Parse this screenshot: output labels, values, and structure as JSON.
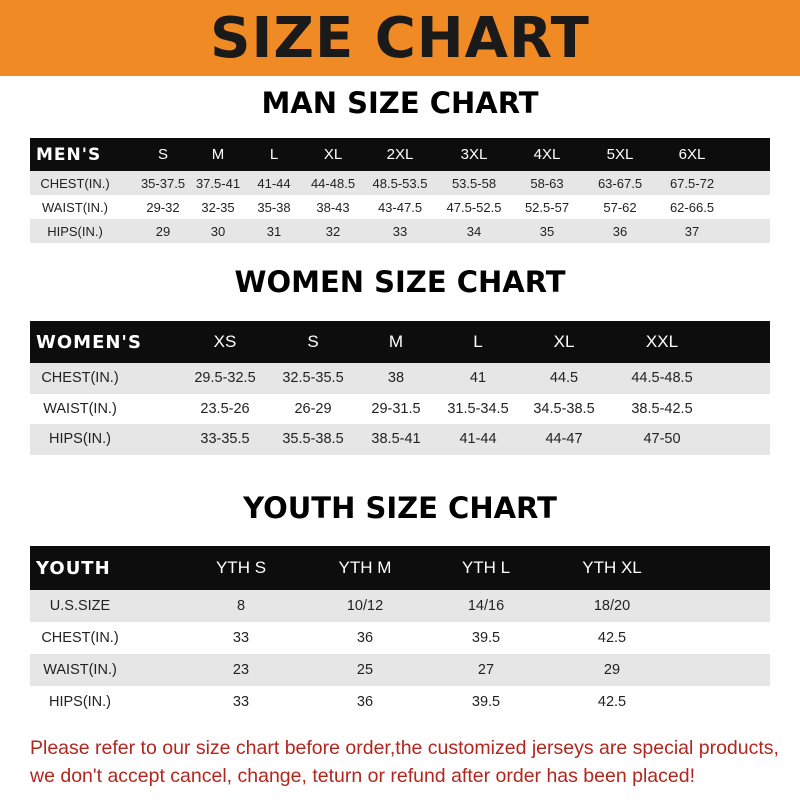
{
  "title": "SIZE CHART",
  "men": {
    "heading": "MAN SIZE CHART",
    "header": [
      "MEN'S",
      "S",
      "M",
      "L",
      "XL",
      "2XL",
      "3XL",
      "4XL",
      "5XL",
      "6XL"
    ],
    "rows": [
      [
        "CHEST(IN.)",
        "35-37.5",
        "37.5-41",
        "41-44",
        "44-48.5",
        "48.5-53.5",
        "53.5-58",
        "58-63",
        "63-67.5",
        "67.5-72"
      ],
      [
        "WAIST(IN.)",
        "29-32",
        "32-35",
        "35-38",
        "38-43",
        "43-47.5",
        "47.5-52.5",
        "52.5-57",
        "57-62",
        "62-66.5"
      ],
      [
        "HIPS(IN.)",
        "29",
        "30",
        "31",
        "32",
        "33",
        "34",
        "35",
        "36",
        "37"
      ]
    ]
  },
  "women": {
    "heading": "WOMEN SIZE CHART",
    "header": [
      "WOMEN'S",
      "XS",
      "S",
      "M",
      "L",
      "XL",
      "XXL"
    ],
    "rows": [
      [
        "CHEST(IN.)",
        "29.5-32.5",
        "32.5-35.5",
        "38",
        "41",
        "44.5",
        "44.5-48.5"
      ],
      [
        "WAIST(IN.)",
        "23.5-26",
        "26-29",
        "29-31.5",
        "31.5-34.5",
        "34.5-38.5",
        "38.5-42.5"
      ],
      [
        "HIPS(IN.)",
        "33-35.5",
        "35.5-38.5",
        "38.5-41",
        "41-44",
        "44-47",
        "47-50"
      ]
    ]
  },
  "youth": {
    "heading": "YOUTH SIZE CHART",
    "header": [
      "YOUTH",
      "YTH S",
      "YTH M",
      "YTH L",
      "YTH XL"
    ],
    "rows": [
      [
        "U.S.SIZE",
        "8",
        "10/12",
        "14/16",
        "18/20"
      ],
      [
        "CHEST(IN.)",
        "33",
        "36",
        "39.5",
        "42.5"
      ],
      [
        "WAIST(IN.)",
        "23",
        "25",
        "27",
        "29"
      ],
      [
        "HIPS(IN.)",
        "33",
        "36",
        "39.5",
        "42.5"
      ]
    ]
  },
  "notice": [
    "Please refer to our size chart before order,the customized jerseys are special products,",
    "we don't accept cancel, change, teturn or refund after order has been placed!"
  ],
  "colors": {
    "banner": "#f08a24",
    "header_row": "#0d0d0d",
    "notice": "#b3261e"
  }
}
